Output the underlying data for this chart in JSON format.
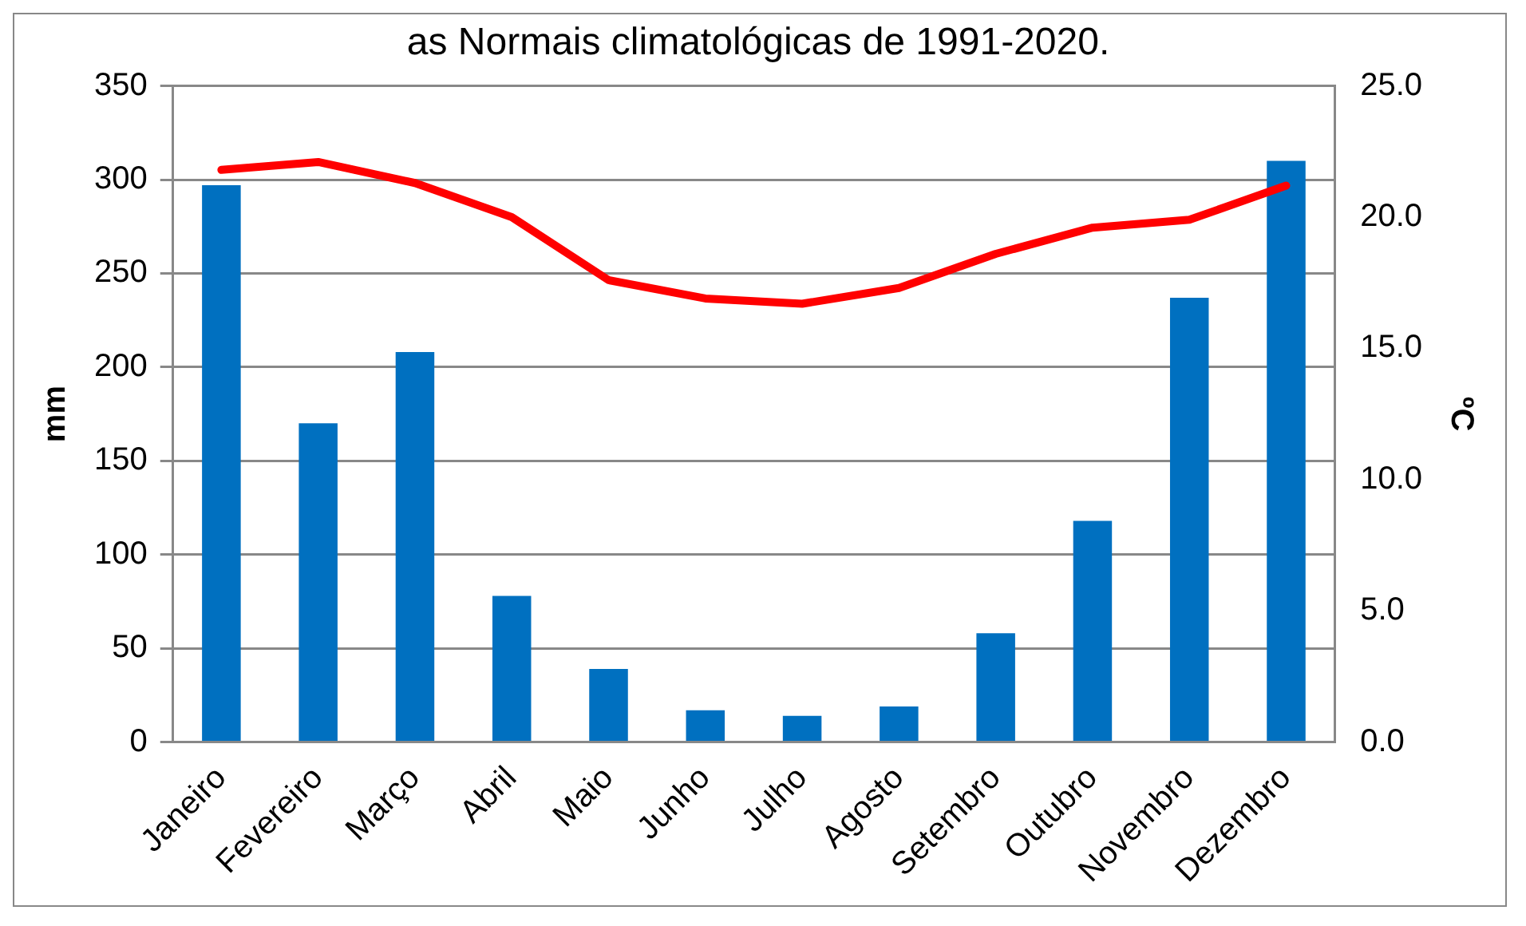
{
  "chart_data": {
    "type": "bar",
    "title": "as Normais climatológicas de 1991-2020.",
    "ylabel": "mm",
    "y2label": "ºC",
    "categories": [
      "Janeiro",
      "Fevereiro",
      "Março",
      "Abril",
      "Maio",
      "Junho",
      "Julho",
      "Agosto",
      "Setembro",
      "Outubro",
      "Novembro",
      "Dezembro"
    ],
    "series": [
      {
        "color": "#0070c0",
        "values": [
          297,
          170,
          208,
          78,
          39,
          17,
          14,
          19,
          58,
          118,
          237,
          310
        ]
      },
      {
        "type": "line",
        "axis": "y2",
        "color": "#ff0000",
        "values": [
          21.8,
          22.1,
          21.3,
          20.0,
          17.6,
          16.9,
          16.7,
          17.3,
          18.6,
          19.6,
          19.9,
          21.2
        ]
      }
    ],
    "ylim": [
      0,
      350
    ],
    "yticks": [
      0,
      50,
      100,
      150,
      200,
      250,
      300,
      350
    ],
    "y2lim": [
      0,
      25
    ],
    "y2ticks": [
      {
        "value": 0,
        "label": "0.0"
      },
      {
        "value": 5,
        "label": "5.0"
      },
      {
        "value": 10,
        "label": "10.0"
      },
      {
        "value": 15,
        "label": "15.0"
      },
      {
        "value": 20,
        "label": "20.0"
      },
      {
        "value": 25,
        "label": "25.0"
      }
    ],
    "grid": "y",
    "legend": false,
    "marker": "none"
  }
}
